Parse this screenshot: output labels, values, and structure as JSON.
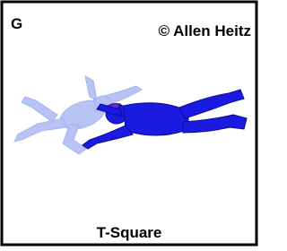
{
  "panel": {
    "label": "G",
    "credit": "© Allen Heitz",
    "caption": "T-Square"
  }
}
